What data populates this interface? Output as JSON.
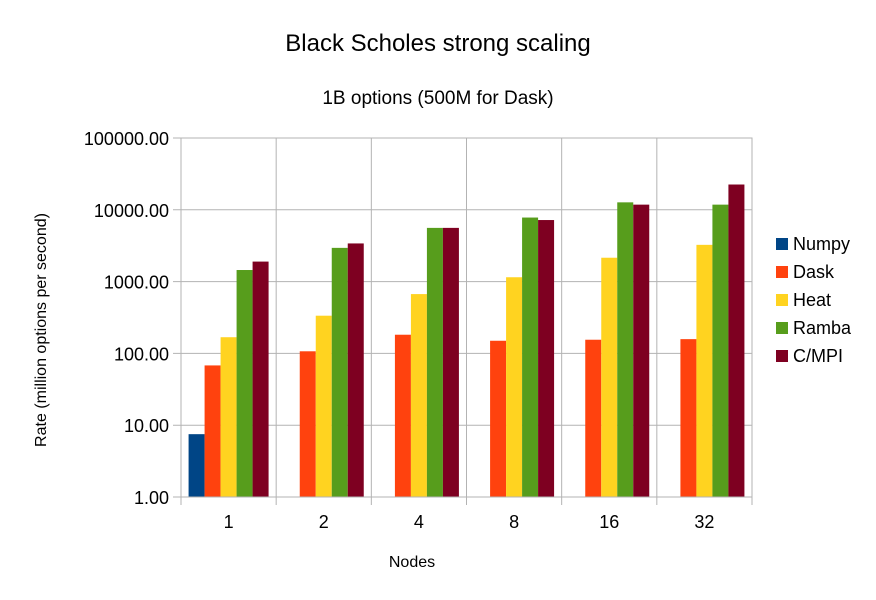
{
  "chart_data": {
    "type": "bar",
    "title": "Black Scholes strong scaling",
    "subtitle": "1B options (500M for Dask)",
    "xlabel": "Nodes",
    "ylabel": "Rate (million options per second)",
    "yscale": "log",
    "ylim": [
      1,
      100000
    ],
    "yticks": [
      "1.00",
      "10.00",
      "100.00",
      "1000.00",
      "10000.00",
      "100000.00"
    ],
    "grid": true,
    "legend_position": "right",
    "categories": [
      "1",
      "2",
      "4",
      "8",
      "16",
      "32"
    ],
    "series": [
      {
        "name": "Numpy",
        "color": "#004586",
        "values": [
          7.5,
          null,
          null,
          null,
          null,
          null
        ]
      },
      {
        "name": "Dask",
        "color": "#ff420e",
        "values": [
          68,
          107,
          182,
          150,
          155,
          158
        ]
      },
      {
        "name": "Heat",
        "color": "#ffd320",
        "values": [
          168,
          335,
          670,
          1150,
          2150,
          3250
        ]
      },
      {
        "name": "Ramba",
        "color": "#579d1c",
        "values": [
          1450,
          2950,
          5600,
          7800,
          12700,
          11800
        ]
      },
      {
        "name": "C/MPI",
        "color": "#7e0021",
        "values": [
          1900,
          3400,
          5600,
          7200,
          11800,
          22500
        ]
      }
    ]
  }
}
